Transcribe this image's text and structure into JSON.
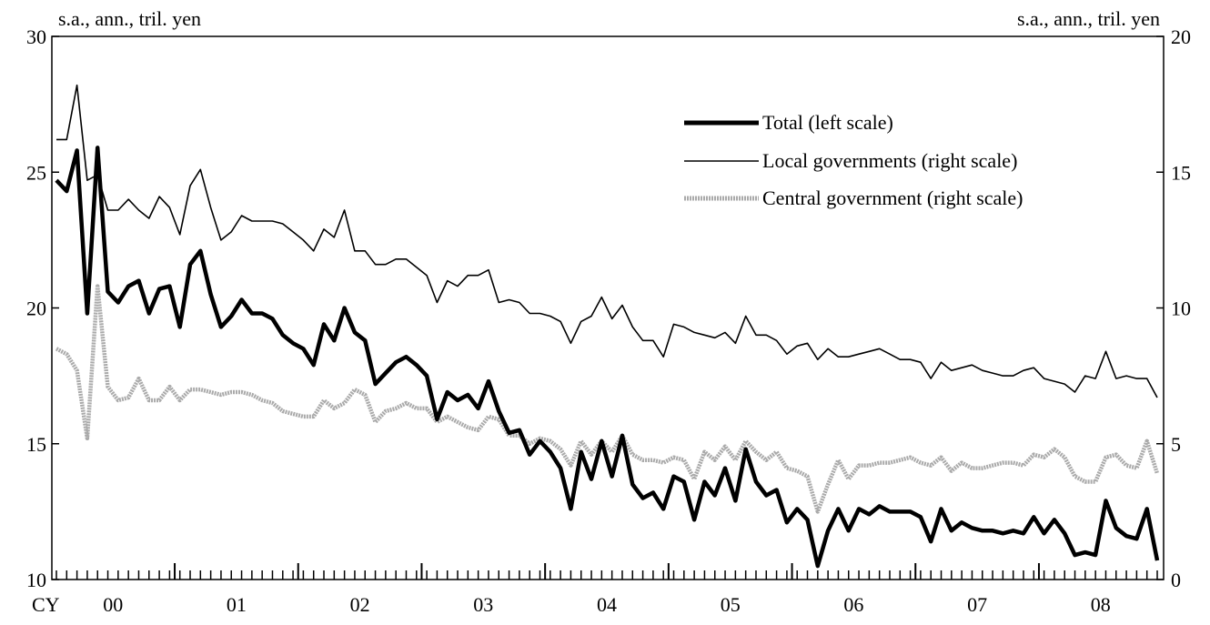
{
  "chart_data": {
    "type": "line",
    "title": "",
    "left_axis": {
      "unit_label": "s.a., ann., tril. yen",
      "ylim": [
        10,
        30
      ],
      "ticks": [
        10,
        15,
        20,
        25,
        30
      ]
    },
    "right_axis": {
      "unit_label": "s.a., ann., tril. yen",
      "ylim": [
        0,
        20
      ],
      "ticks": [
        0,
        5,
        10,
        15,
        20
      ]
    },
    "x_axis": {
      "start_label": "CY",
      "year_labels": [
        "00",
        "01",
        "02",
        "03",
        "04",
        "05",
        "06",
        "07",
        "08"
      ],
      "months_per_year": 12,
      "total_months": 108
    },
    "legend": {
      "placement": "upper-right",
      "entries": [
        "Total (left scale)",
        "Local governments (right scale)",
        "Central government (right scale)"
      ]
    },
    "series": [
      {
        "name": "Total (left scale)",
        "axis": "left",
        "color": "#000000",
        "style": "thick",
        "values": [
          24.7,
          24.3,
          25.8,
          19.8,
          25.9,
          20.6,
          20.2,
          20.8,
          21.0,
          19.8,
          20.7,
          20.8,
          19.3,
          21.6,
          22.1,
          20.5,
          19.3,
          19.7,
          20.3,
          19.8,
          19.8,
          19.6,
          19.0,
          18.7,
          18.5,
          17.9,
          19.4,
          18.8,
          20.0,
          19.1,
          18.8,
          17.2,
          17.6,
          18.0,
          18.2,
          17.9,
          17.5,
          15.9,
          16.9,
          16.6,
          16.8,
          16.3,
          17.3,
          16.2,
          15.4,
          15.5,
          14.6,
          15.1,
          14.7,
          14.1,
          12.6,
          14.7,
          13.7,
          15.1,
          13.8,
          15.3,
          13.5,
          13.0,
          13.2,
          12.6,
          13.8,
          13.6,
          12.2,
          13.6,
          13.1,
          14.1,
          12.9,
          14.8,
          13.6,
          13.1,
          13.3,
          12.1,
          12.6,
          12.2,
          10.5,
          11.8,
          12.6,
          11.8,
          12.6,
          12.4,
          12.7,
          12.5,
          12.5,
          12.5,
          12.3,
          11.4,
          12.6,
          11.8,
          12.1,
          11.9,
          11.8,
          11.8,
          11.7,
          11.8,
          11.7,
          12.3,
          11.7,
          12.2,
          11.7,
          10.9,
          11.0,
          10.9,
          12.9,
          11.9,
          11.6,
          11.5,
          12.6,
          10.7
        ]
      },
      {
        "name": "Local governments (right scale)",
        "axis": "right",
        "color": "#000000",
        "style": "thin",
        "values": [
          16.2,
          16.2,
          18.2,
          14.7,
          14.9,
          13.6,
          13.6,
          14.0,
          13.6,
          13.3,
          14.1,
          13.7,
          12.7,
          14.5,
          15.1,
          13.7,
          12.5,
          12.8,
          13.4,
          13.2,
          13.2,
          13.2,
          13.1,
          12.8,
          12.5,
          12.1,
          12.9,
          12.6,
          13.6,
          12.1,
          12.1,
          11.6,
          11.6,
          11.8,
          11.8,
          11.5,
          11.2,
          10.2,
          11.0,
          10.8,
          11.2,
          11.2,
          11.4,
          10.2,
          10.3,
          10.2,
          9.8,
          9.8,
          9.7,
          9.5,
          8.7,
          9.5,
          9.7,
          10.4,
          9.6,
          10.1,
          9.3,
          8.8,
          8.8,
          8.2,
          9.4,
          9.3,
          9.1,
          9.0,
          8.9,
          9.1,
          8.7,
          9.7,
          9.0,
          9.0,
          8.8,
          8.3,
          8.6,
          8.7,
          8.1,
          8.5,
          8.2,
          8.2,
          8.3,
          8.4,
          8.5,
          8.3,
          8.1,
          8.1,
          8.0,
          7.4,
          8.0,
          7.7,
          7.8,
          7.9,
          7.7,
          7.6,
          7.5,
          7.5,
          7.7,
          7.8,
          7.4,
          7.3,
          7.2,
          6.9,
          7.5,
          7.4,
          8.4,
          7.4,
          7.5,
          7.4,
          7.4,
          6.7
        ]
      },
      {
        "name": "Central government (right scale)",
        "axis": "right",
        "color": "#aaaaaa",
        "style": "dotted-band",
        "values": [
          8.5,
          8.3,
          7.7,
          5.2,
          10.8,
          7.1,
          6.6,
          6.7,
          7.4,
          6.6,
          6.6,
          7.1,
          6.6,
          7.0,
          7.0,
          6.9,
          6.8,
          6.9,
          6.9,
          6.8,
          6.6,
          6.5,
          6.2,
          6.1,
          6.0,
          6.0,
          6.6,
          6.3,
          6.5,
          7.0,
          6.8,
          5.8,
          6.2,
          6.3,
          6.5,
          6.3,
          6.3,
          5.8,
          6.0,
          5.8,
          5.6,
          5.5,
          6.0,
          5.9,
          5.3,
          5.3,
          5.0,
          5.2,
          5.1,
          4.8,
          4.2,
          5.1,
          4.6,
          5.1,
          4.7,
          5.3,
          4.6,
          4.4,
          4.4,
          4.3,
          4.5,
          4.4,
          3.7,
          4.7,
          4.4,
          4.9,
          4.4,
          5.1,
          4.7,
          4.4,
          4.7,
          4.1,
          4.0,
          3.8,
          2.5,
          3.5,
          4.4,
          3.7,
          4.2,
          4.2,
          4.3,
          4.3,
          4.4,
          4.5,
          4.3,
          4.2,
          4.5,
          4.0,
          4.3,
          4.1,
          4.1,
          4.2,
          4.3,
          4.3,
          4.2,
          4.6,
          4.5,
          4.8,
          4.5,
          3.8,
          3.6,
          3.6,
          4.5,
          4.6,
          4.2,
          4.1,
          5.1,
          3.9
        ]
      }
    ]
  }
}
